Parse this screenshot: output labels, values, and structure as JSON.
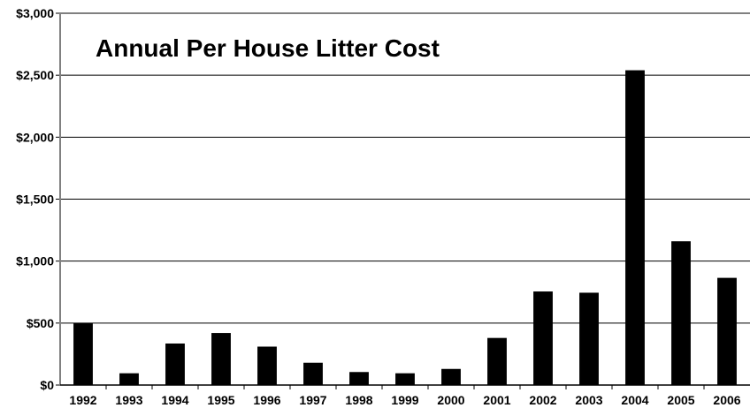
{
  "chart_data": {
    "type": "bar",
    "title": "Annual Per House Litter Cost",
    "xlabel": "",
    "ylabel": "",
    "categories": [
      "1992",
      "1993",
      "1994",
      "1995",
      "1996",
      "1997",
      "1998",
      "1999",
      "2000",
      "2001",
      "2002",
      "2003",
      "2004",
      "2005",
      "2006"
    ],
    "values": [
      500,
      95,
      335,
      420,
      310,
      180,
      105,
      95,
      130,
      380,
      755,
      745,
      2540,
      1160,
      865
    ],
    "ylim": [
      0,
      3000
    ],
    "y_ticks": [
      0,
      500,
      1000,
      1500,
      2000,
      2500,
      3000
    ],
    "y_tick_labels": [
      "$0",
      "$500",
      "$1,000",
      "$1,500",
      "$2,000",
      "$2,500",
      "$3,000"
    ],
    "grid": true,
    "legend": "none",
    "colors": {
      "bar": "#000000",
      "grid": "#000000",
      "axis": "#808080",
      "background": "#ffffff"
    }
  }
}
